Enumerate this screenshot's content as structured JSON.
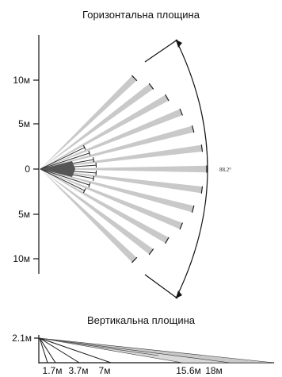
{
  "horizontal": {
    "title": "Горизонтальна площина",
    "y_labels": [
      "10м",
      "5м",
      "0",
      "5м",
      "10м"
    ],
    "angle_label": "88.2°"
  },
  "vertical": {
    "title": "Вертикальна площина",
    "height_label": "2.1м",
    "x_labels": [
      "1.7м",
      "3.7м",
      "7м",
      "15.6м",
      "18м"
    ]
  },
  "colors": {
    "beam": "#c9c9c9",
    "ink": "#111111"
  }
}
